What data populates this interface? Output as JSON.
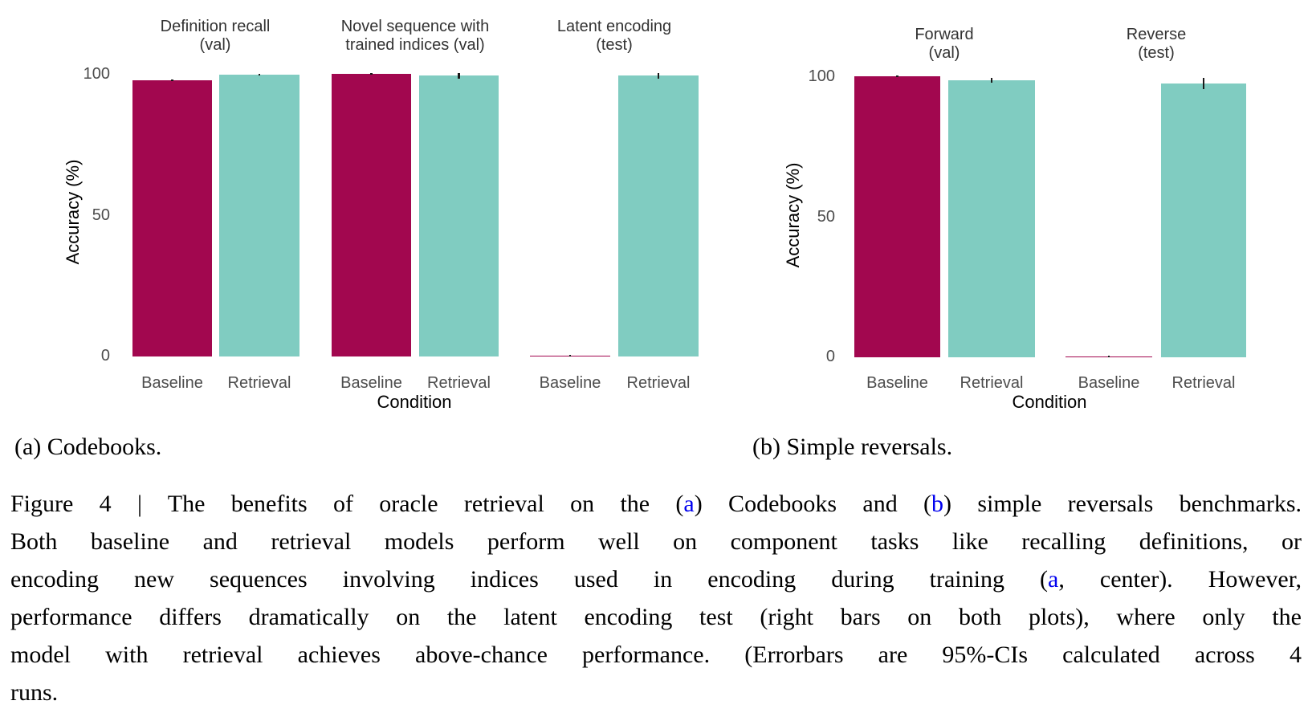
{
  "figure": {
    "subcaptions": {
      "a": "(a) Codebooks.",
      "b": "(b) Simple reversals."
    },
    "link_color": "#0000EE",
    "caption_lines": [
      [
        {
          "t": "Figure 4 | The benefits of oracle retrieval on the ("
        },
        {
          "t": "a",
          "link": true
        },
        {
          "t": ") Codebooks and ("
        },
        {
          "t": "b",
          "link": true
        },
        {
          "t": ") simple reversals benchmarks."
        }
      ],
      [
        {
          "t": "Both baseline and retrieval models perform well on component tasks like recalling definitions, or"
        }
      ],
      [
        {
          "t": "encoding new sequences involving indices used in encoding during training ("
        },
        {
          "t": "a",
          "link": true
        },
        {
          "t": ", center). However,"
        }
      ],
      [
        {
          "t": "performance differs dramatically on the latent encoding test (right bars on both plots), where only the"
        }
      ],
      [
        {
          "t": "model with retrieval achieves above-chance performance. (Errorbars are 95%-CIs calculated across 4"
        }
      ],
      [
        {
          "t": "runs."
        }
      ]
    ]
  },
  "chart_data": [
    {
      "type": "bar",
      "panel": "a",
      "panel_label": "Codebooks",
      "ylabel": "Accuracy (%)",
      "xlabel": "Condition",
      "ylim": [
        0,
        100
      ],
      "yticks": [
        0,
        50,
        100
      ],
      "grid": false,
      "legend": "none",
      "categories": [
        "Baseline",
        "Retrieval"
      ],
      "bar_colors": [
        "#A2074F",
        "#80CCC1"
      ],
      "error_bar_meaning": "95%-CI across 4 runs",
      "facets": [
        {
          "title": "Definition recall\n(val)",
          "values": [
            97.9,
            100.0
          ],
          "errors": [
            0.3,
            0.4
          ]
        },
        {
          "title": "Novel sequence with\ntrained indices (val)",
          "values": [
            100.4,
            99.6
          ],
          "errors": [
            0.3,
            1.0
          ]
        },
        {
          "title": "Latent encoding\n(test)",
          "values": [
            0.4,
            99.6
          ],
          "errors": [
            0.2,
            1.0
          ]
        }
      ]
    },
    {
      "type": "bar",
      "panel": "b",
      "panel_label": "Simple reversals",
      "ylabel": "Accuracy (%)",
      "xlabel": "Condition",
      "ylim": [
        0,
        100
      ],
      "yticks": [
        0,
        50,
        100
      ],
      "grid": false,
      "legend": "none",
      "categories": [
        "Baseline",
        "Retrieval"
      ],
      "bar_colors": [
        "#A2074F",
        "#80CCC1"
      ],
      "error_bar_meaning": "95%-CI across 4 runs",
      "facets": [
        {
          "title": "Forward\n(val)",
          "values": [
            100.2,
            98.8
          ],
          "errors": [
            0.3,
            0.8
          ]
        },
        {
          "title": "Reverse\n(test)",
          "values": [
            0.4,
            97.7
          ],
          "errors": [
            0.2,
            2.1
          ]
        }
      ]
    }
  ]
}
